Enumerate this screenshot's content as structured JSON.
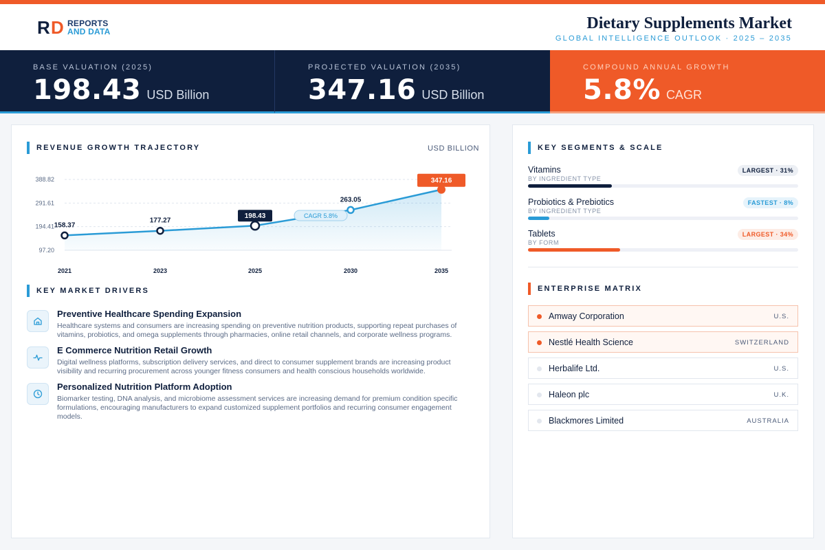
{
  "header": {
    "logo_line1": "REPORTS",
    "logo_line2": "AND DATA",
    "title": "Dietary Supplements Market",
    "subtitle": "GLOBAL INTELLIGENCE OUTLOOK · 2025 – 2035"
  },
  "kpis": [
    {
      "label": "BASE VALUATION (2025)",
      "value": "198.43",
      "unit": "USD Billion"
    },
    {
      "label": "PROJECTED VALUATION (2035)",
      "value": "347.16",
      "unit": "USD Billion"
    },
    {
      "label": "COMPOUND ANNUAL GROWTH",
      "value": "5.8%",
      "unit": "CAGR"
    }
  ],
  "revenue": {
    "heading": "REVENUE GROWTH TRAJECTORY",
    "unit": "USD BILLION",
    "cagr_label": "CAGR 5.8%"
  },
  "chart_data": {
    "type": "area",
    "title": "REVENUE GROWTH TRAJECTORY",
    "ylabel": "USD BILLION",
    "x": [
      "2021",
      "2023",
      "2025",
      "2030",
      "2035"
    ],
    "values": [
      158.37,
      177.27,
      198.43,
      263.05,
      347.16
    ],
    "value_labels": [
      "158.37",
      "177.27",
      "198.43",
      "263.05",
      "347.16"
    ],
    "y_ticks": [
      97.2,
      194.41,
      291.61,
      388.82
    ],
    "y_tick_labels": [
      "97.20",
      "194.41",
      "291.61",
      "388.82"
    ],
    "ylim": [
      97.2,
      388.82
    ],
    "grid": true,
    "annotation": "CAGR 5.8%"
  },
  "drivers": {
    "heading": "KEY MARKET DRIVERS",
    "items": [
      {
        "icon": "home-icon",
        "title": "Preventive Healthcare Spending Expansion",
        "desc": "Healthcare systems and consumers are increasing spending on preventive nutrition products, supporting repeat purchases of vitamins, probiotics, and omega supplements through pharmacies, online retail channels, and corporate wellness programs."
      },
      {
        "icon": "activity-icon",
        "title": "E Commerce Nutrition Retail Growth",
        "desc": "Digital wellness platforms, subscription delivery services, and direct to consumer supplement brands are increasing product visibility and recurring procurement across younger fitness consumers and health conscious households worldwide."
      },
      {
        "icon": "clock-icon",
        "title": "Personalized Nutrition Platform Adoption",
        "desc": "Biomarker testing, DNA analysis, and microbiome assessment services are increasing demand for premium condition specific formulations, encouraging manufacturers to expand customized supplement portfolios and recurring consumer engagement models."
      }
    ]
  },
  "segments": {
    "heading": "KEY SEGMENTS & SCALE",
    "items": [
      {
        "name": "Vitamins",
        "category": "BY INGREDIENT TYPE",
        "badge": "LARGEST · 31%",
        "share": 0.31,
        "fill_color": "#0f1f3d",
        "badge_bg": "#eceff4",
        "badge_color": "#0f1f3d"
      },
      {
        "name": "Probiotics & Prebiotics",
        "category": "BY INGREDIENT TYPE",
        "badge": "FASTEST · 8%",
        "share": 0.08,
        "fill_color": "#2a9bd6",
        "badge_bg": "#e6f3fb",
        "badge_color": "#2a9bd6"
      },
      {
        "name": "Tablets",
        "category": "BY FORM",
        "badge": "LARGEST · 34%",
        "share": 0.34,
        "fill_color": "#ef5a28",
        "badge_bg": "#fdece5",
        "badge_color": "#ef5a28"
      }
    ]
  },
  "enterprise": {
    "heading": "ENTERPRISE MATRIX",
    "items": [
      {
        "name": "Amway Corporation",
        "country": "U.S.",
        "highlight": true
      },
      {
        "name": "Nestlé Health Science",
        "country": "SWITZERLAND",
        "highlight": true
      },
      {
        "name": "Herbalife Ltd.",
        "country": "U.S.",
        "highlight": false
      },
      {
        "name": "Haleon plc",
        "country": "U.K.",
        "highlight": false
      },
      {
        "name": "Blackmores Limited",
        "country": "AUSTRALIA",
        "highlight": false
      }
    ]
  },
  "colors": {
    "navy": "#0f1f3d",
    "blue": "#2a9bd6",
    "orange": "#ef5a28"
  }
}
